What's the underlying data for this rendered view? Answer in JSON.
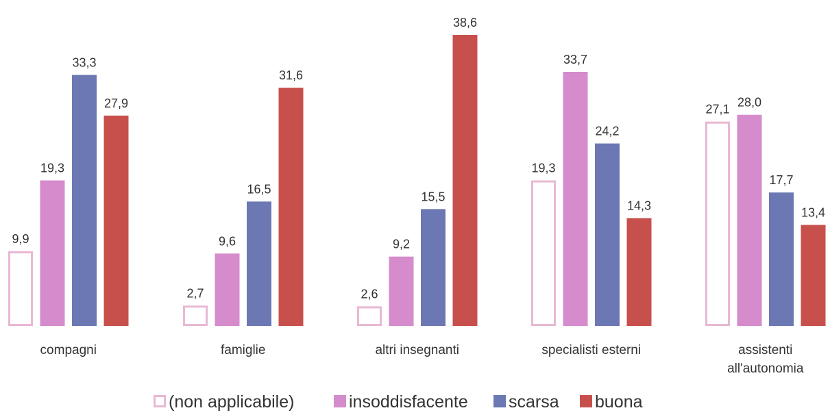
{
  "chart_data": {
    "type": "bar",
    "categories": [
      [
        "compagni"
      ],
      [
        "famiglie"
      ],
      [
        "altri insegnanti"
      ],
      [
        "specialisti esterni"
      ],
      [
        "assistenti",
        "all'autonomia"
      ]
    ],
    "series": [
      {
        "name": "(non applicabile)",
        "values": [
          9.9,
          2.7,
          2.6,
          19.3,
          27.1
        ],
        "value_labels": [
          "9,9",
          "2,7",
          "2,6",
          "19,3",
          "27,1"
        ],
        "color": "#e8b8d4",
        "style": "outline"
      },
      {
        "name": "insoddisfacente",
        "values": [
          19.3,
          9.6,
          9.2,
          33.7,
          28.0
        ],
        "value_labels": [
          "19,3",
          "9,6",
          "9,2",
          "33,7",
          "28,0"
        ],
        "color": "#d58bcc",
        "style": "filled"
      },
      {
        "name": "scarsa",
        "values": [
          33.3,
          16.5,
          15.5,
          24.2,
          17.7
        ],
        "value_labels": [
          "33,3",
          "16,5",
          "15,5",
          "24,2",
          "17,7"
        ],
        "color": "#6b78b3",
        "style": "filled"
      },
      {
        "name": "buona",
        "values": [
          27.9,
          31.6,
          38.6,
          14.3,
          13.4
        ],
        "value_labels": [
          "27,9",
          "31,6",
          "38,6",
          "14,3",
          "13,4"
        ],
        "color": "#c8504c",
        "style": "filled"
      }
    ],
    "ylim": [
      0,
      38.6
    ],
    "grid": false,
    "legend": "bottom",
    "title": "",
    "xlabel": "",
    "ylabel": ""
  }
}
